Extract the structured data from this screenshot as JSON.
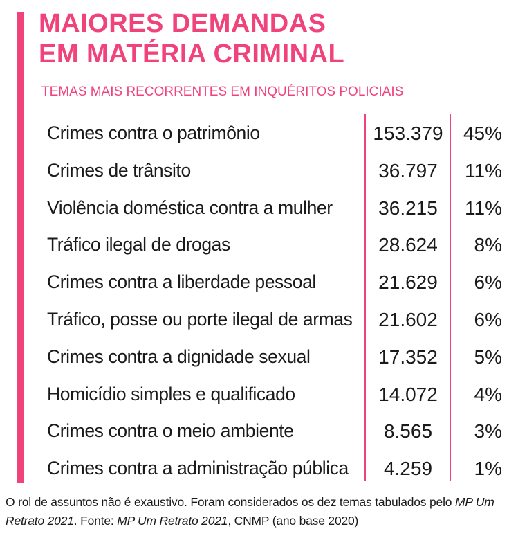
{
  "title_line1": "MAIORES DEMANDAS",
  "title_line2": "EM MATÉRIA CRIMINAL",
  "subtitle": "TEMAS MAIS RECORRENTES EM INQUÉRITOS POLICIAIS",
  "accent_color": "#f0437c",
  "footnote": {
    "part1": "O rol de assuntos não é exaustivo. Foram considerados os dez temas tabulados pelo ",
    "italic1": "MP Um Retrato 2021",
    "part2": ". Fonte: ",
    "italic2": "MP Um Retrato 2021",
    "part3": ", CNMP (ano base 2020)"
  },
  "chart_data": {
    "type": "table",
    "title": "MAIORES DEMANDAS EM MATÉRIA CRIMINAL",
    "subtitle": "TEMAS MAIS RECORRENTES EM INQUÉRITOS POLICIAIS",
    "rows": [
      {
        "label": "Crimes contra o patrimônio",
        "value": "153.379",
        "pct": "45%"
      },
      {
        "label": "Crimes de trânsito",
        "value": "36.797",
        "pct": "11%"
      },
      {
        "label": "Violência doméstica contra a mulher",
        "value": "36.215",
        "pct": "11%"
      },
      {
        "label": "Tráfico ilegal de drogas",
        "value": "28.624",
        "pct": "8%"
      },
      {
        "label": "Crimes contra a liberdade pessoal",
        "value": "21.629",
        "pct": "6%"
      },
      {
        "label": "Tráfico, posse ou porte ilegal de armas",
        "value": "21.602",
        "pct": "6%"
      },
      {
        "label": "Crimes contra a dignidade sexual",
        "value": "17.352",
        "pct": "5%"
      },
      {
        "label": "Homicídio simples e qualificado",
        "value": "14.072",
        "pct": "4%"
      },
      {
        "label": "Crimes contra o meio ambiente",
        "value": "8.565",
        "pct": "3%"
      },
      {
        "label": "Crimes contra a administração pública",
        "value": "4.259",
        "pct": "1%"
      }
    ]
  }
}
